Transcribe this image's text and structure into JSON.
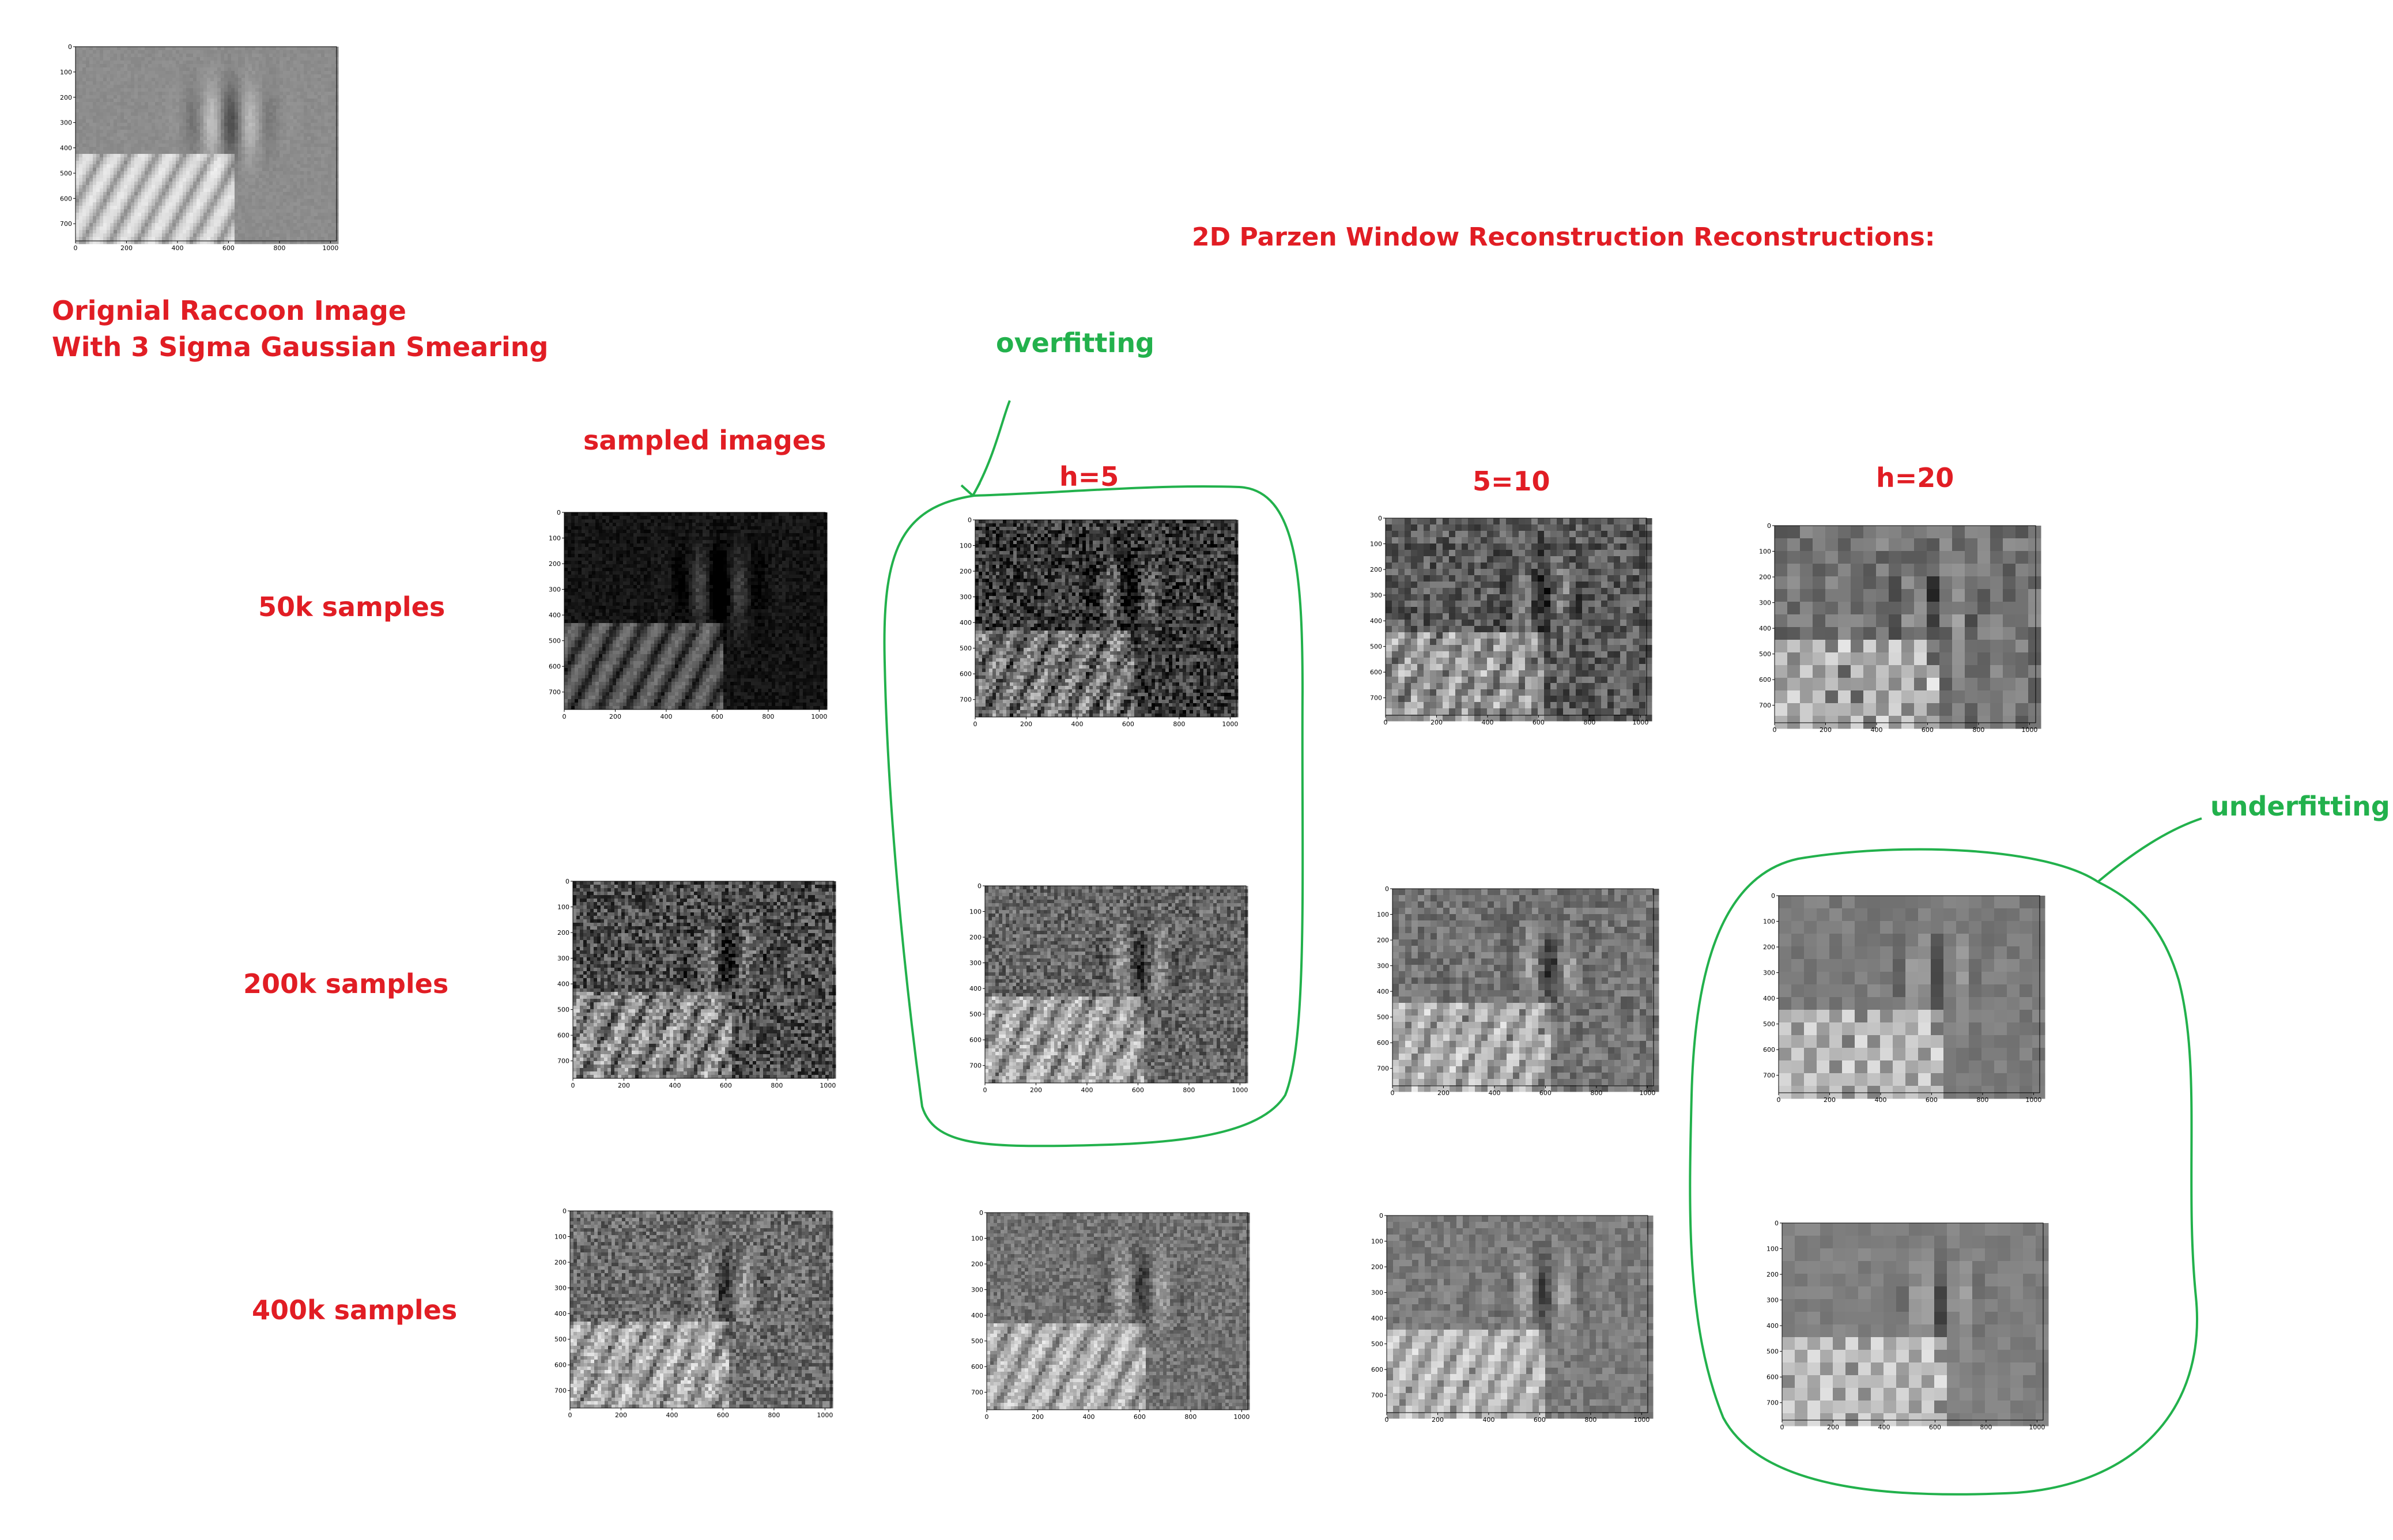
{
  "texts": {
    "original_line1": "Orignial Raccoon Image",
    "original_line2": "With 3 Sigma Gaussian Smearing",
    "main_title": "2D Parzen Window Reconstruction Reconstructions:",
    "overfitting": "overfitting",
    "underfitting": "underfitting",
    "col_sampled": "sampled images",
    "col_h5": "h=5",
    "col_h10": "5=10",
    "col_h20": "h=20",
    "row_50k": "50k samples",
    "row_200k": "200k samples",
    "row_400k": "400k samples"
  },
  "axis": {
    "x_ticks": [
      "0",
      "200",
      "400",
      "600",
      "800",
      "1000"
    ],
    "y_ticks": [
      "0",
      "100",
      "200",
      "300",
      "400",
      "500",
      "600",
      "700"
    ]
  },
  "plots": [
    {
      "id": "original",
      "brightness": 0.55,
      "block": 4,
      "noise": 0.05
    },
    {
      "id": "s50k",
      "brightness": 0.08,
      "block": 4,
      "noise": 0.12
    },
    {
      "id": "h5-50k",
      "brightness": 0.22,
      "block": 5,
      "noise": 0.45
    },
    {
      "id": "h10-50k",
      "brightness": 0.35,
      "block": 10,
      "noise": 0.35
    },
    {
      "id": "h20-50k",
      "brightness": 0.45,
      "block": 20,
      "noise": 0.25
    },
    {
      "id": "s200k",
      "brightness": 0.3,
      "block": 4,
      "noise": 0.45
    },
    {
      "id": "h5-200k",
      "brightness": 0.4,
      "block": 5,
      "noise": 0.35
    },
    {
      "id": "h10-200k",
      "brightness": 0.45,
      "block": 10,
      "noise": 0.25
    },
    {
      "id": "h20-200k",
      "brightness": 0.48,
      "block": 20,
      "noise": 0.12
    },
    {
      "id": "s400k",
      "brightness": 0.42,
      "block": 4,
      "noise": 0.35
    },
    {
      "id": "h5-400k",
      "brightness": 0.45,
      "block": 5,
      "noise": 0.25
    },
    {
      "id": "h10-400k",
      "brightness": 0.48,
      "block": 10,
      "noise": 0.18
    },
    {
      "id": "h20-400k",
      "brightness": 0.5,
      "block": 20,
      "noise": 0.1
    }
  ],
  "colors": {
    "red": "#e11d24",
    "green": "#22b14c"
  }
}
